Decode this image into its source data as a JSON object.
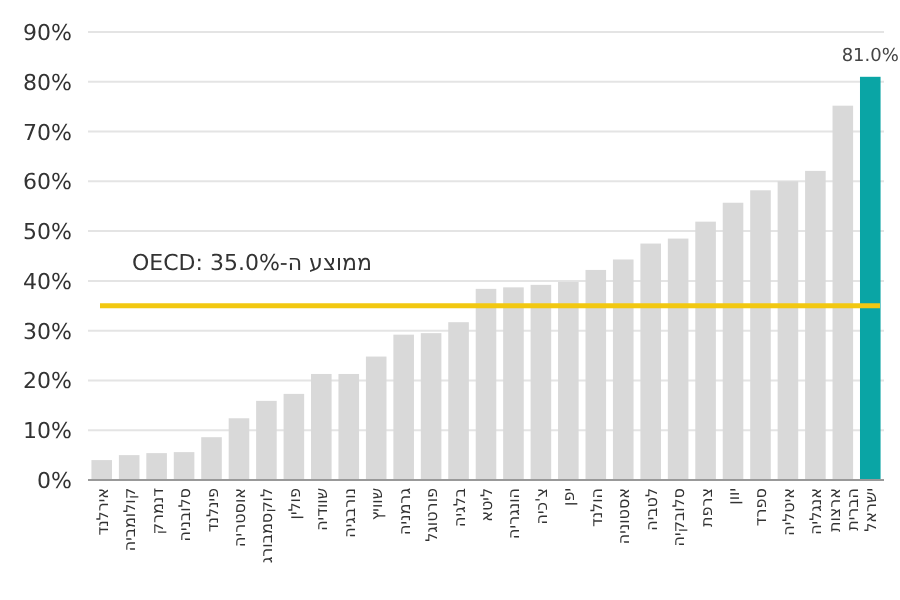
{
  "chart_data": {
    "type": "bar",
    "categories": [
      "אירלנד",
      "קולומביה",
      "דנמרק",
      "סלובניה",
      "פינלנד",
      "אוסטריה",
      "לוקסמבורג",
      "פולין",
      "שוודיה",
      "נורבגיה",
      "שוויץ",
      "גרמניה",
      "פורטוגל",
      "בלגיה",
      "ליטא",
      "הונגריה",
      "צ'כיה",
      "יפן",
      "הולנד",
      "אסטוניה",
      "לטביה",
      "סלובקיה",
      "צרפת",
      "יוון",
      "ספרד",
      "איטליה",
      "אנגליה",
      "ארצות הברית",
      "ישראל"
    ],
    "values": [
      4.0,
      5.0,
      5.4,
      5.6,
      8.6,
      12.4,
      15.9,
      17.3,
      21.3,
      21.3,
      24.8,
      29.2,
      29.5,
      31.7,
      38.4,
      38.7,
      39.2,
      39.8,
      42.2,
      44.3,
      47.5,
      48.5,
      51.9,
      55.7,
      58.2,
      60.0,
      62.1,
      75.2,
      81.0
    ],
    "colors": [
      "#d9d9d9",
      "#d9d9d9",
      "#d9d9d9",
      "#d9d9d9",
      "#d9d9d9",
      "#d9d9d9",
      "#d9d9d9",
      "#d9d9d9",
      "#d9d9d9",
      "#d9d9d9",
      "#d9d9d9",
      "#d9d9d9",
      "#d9d9d9",
      "#d9d9d9",
      "#d9d9d9",
      "#d9d9d9",
      "#d9d9d9",
      "#d9d9d9",
      "#d9d9d9",
      "#d9d9d9",
      "#d9d9d9",
      "#d9d9d9",
      "#d9d9d9",
      "#d9d9d9",
      "#d9d9d9",
      "#d9d9d9",
      "#d9d9d9",
      "#d9d9d9",
      "#0aa5a5"
    ],
    "value_labels": [
      null,
      null,
      null,
      null,
      null,
      null,
      null,
      null,
      null,
      null,
      null,
      null,
      null,
      null,
      null,
      null,
      null,
      null,
      null,
      null,
      null,
      null,
      null,
      null,
      null,
      null,
      null,
      null,
      "81.0%"
    ],
    "ylim": [
      0,
      90
    ],
    "yticks": [
      {
        "value": 0,
        "label": "0%"
      },
      {
        "value": 10,
        "label": "10%"
      },
      {
        "value": 20,
        "label": "20%"
      },
      {
        "value": 30,
        "label": "30%"
      },
      {
        "value": 40,
        "label": "40%"
      },
      {
        "value": 50,
        "label": "50%"
      },
      {
        "value": 60,
        "label": "60%"
      },
      {
        "value": 70,
        "label": "70%"
      },
      {
        "value": 80,
        "label": "80%"
      },
      {
        "value": 90,
        "label": "90%"
      }
    ],
    "grid": "y",
    "ref_lines": [
      {
        "axis": "y",
        "value": 35,
        "label": "ממוצע ה-OECD: 35.0%",
        "color": "#f2c811"
      }
    ]
  }
}
